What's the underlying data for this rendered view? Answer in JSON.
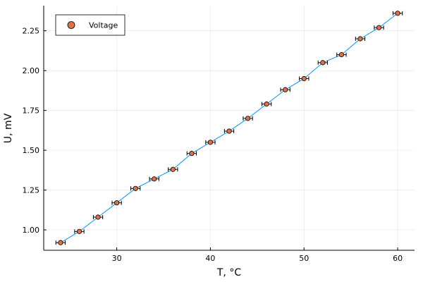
{
  "chart_data": {
    "type": "scatter",
    "xlabel": "T, °C",
    "ylabel": "U, mV",
    "xlim": [
      22.2,
      61.8
    ],
    "ylim": [
      0.872,
      2.408
    ],
    "xticks": [
      30,
      40,
      50,
      60
    ],
    "yticks": [
      1.0,
      1.25,
      1.5,
      1.75,
      2.0,
      2.25
    ],
    "xtick_labels": [
      "30",
      "40",
      "50",
      "60"
    ],
    "ytick_labels": [
      "1.00",
      "1.25",
      "1.50",
      "1.75",
      "2.00",
      "2.25"
    ],
    "grid": true,
    "legend_position": "top-left",
    "series": [
      {
        "name": "Voltage",
        "marker_color": "#e26f46",
        "line_color": "#009af9",
        "x_error": 0.5,
        "x": [
          24,
          26,
          28,
          30,
          32,
          34,
          36,
          38,
          40,
          42,
          44,
          46,
          48,
          50,
          52,
          54,
          56,
          58,
          60
        ],
        "y": [
          0.92,
          0.99,
          1.08,
          1.17,
          1.26,
          1.32,
          1.38,
          1.48,
          1.55,
          1.62,
          1.7,
          1.79,
          1.88,
          1.95,
          2.05,
          2.1,
          2.2,
          2.27,
          2.36
        ]
      }
    ]
  }
}
